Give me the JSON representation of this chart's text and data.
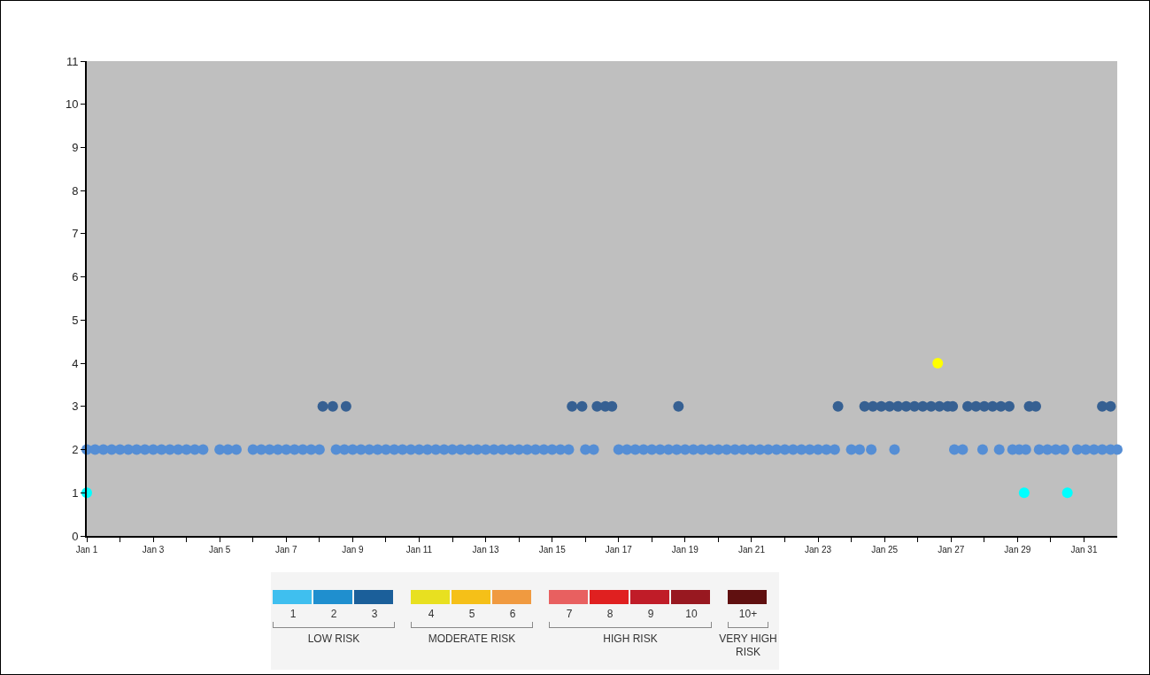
{
  "chart_data": {
    "type": "scatter",
    "marker": "circle",
    "legend": false,
    "grid": false,
    "xlim": [
      "--01-01",
      "--02-01"
    ],
    "ylim": [
      0,
      11
    ],
    "yticks": [
      0,
      1,
      2,
      3,
      4,
      5,
      6,
      7,
      8,
      9,
      10,
      11
    ],
    "xticks": [
      {
        "value": "--01-01",
        "label": "Jan 1"
      },
      {
        "value": "--01-02",
        "label": null
      },
      {
        "value": "--01-03",
        "label": "Jan 3"
      },
      {
        "value": "--01-04",
        "label": null
      },
      {
        "value": "--01-05",
        "label": "Jan 5"
      },
      {
        "value": "--01-06",
        "label": null
      },
      {
        "value": "--01-07",
        "label": "Jan 7"
      },
      {
        "value": "--01-08",
        "label": null
      },
      {
        "value": "--01-09",
        "label": "Jan 9"
      },
      {
        "value": "--01-10",
        "label": null
      },
      {
        "value": "--01-11",
        "label": "Jan 11"
      },
      {
        "value": "--01-12",
        "label": null
      },
      {
        "value": "--01-13",
        "label": "Jan 13"
      },
      {
        "value": "--01-14",
        "label": null
      },
      {
        "value": "--01-15",
        "label": "Jan 15"
      },
      {
        "value": "--01-16",
        "label": null
      },
      {
        "value": "--01-17",
        "label": "Jan 17"
      },
      {
        "value": "--01-18",
        "label": null
      },
      {
        "value": "--01-19",
        "label": "Jan 19"
      },
      {
        "value": "--01-20",
        "label": null
      },
      {
        "value": "--01-21",
        "label": "Jan 21"
      },
      {
        "value": "--01-22",
        "label": null
      },
      {
        "value": "--01-23",
        "label": "Jan 23"
      },
      {
        "value": "--01-24",
        "label": null
      },
      {
        "value": "--01-25",
        "label": "Jan 25"
      },
      {
        "value": "--01-26",
        "label": null
      },
      {
        "value": "--01-27",
        "label": "Jan 27"
      },
      {
        "value": "--01-28",
        "label": null
      },
      {
        "value": "--01-29",
        "label": "Jan 29"
      },
      {
        "value": "--01-30",
        "label": null
      },
      {
        "value": "--01-31",
        "label": "Jan 31"
      }
    ],
    "series": [
      {
        "color": "#00ffff",
        "x": [
          "--01-01T00:00",
          "--01-29T04:48",
          "--01-30T12:00"
        ],
        "values": [
          1,
          1,
          1
        ]
      },
      {
        "color": "#558ed5",
        "x": [
          "--01-01T00:00",
          "--01-01T06:00",
          "--01-01T12:00",
          "--01-01T18:00",
          "--01-02T00:00",
          "--01-02T06:00",
          "--01-02T12:00",
          "--01-02T18:00",
          "--01-03T00:00",
          "--01-03T06:00",
          "--01-03T12:00",
          "--01-03T18:00",
          "--01-04T00:00",
          "--01-04T06:00",
          "--01-04T12:00",
          "--01-05T00:00",
          "--01-05T06:00",
          "--01-05T12:00",
          "--01-06T00:00",
          "--01-06T06:00",
          "--01-06T12:00",
          "--01-06T18:00",
          "--01-07T00:00",
          "--01-07T06:00",
          "--01-07T12:00",
          "--01-07T18:00",
          "--01-08T00:00",
          "--01-08T12:00",
          "--01-08T18:00",
          "--01-09T00:00",
          "--01-09T06:00",
          "--01-09T12:00",
          "--01-09T18:00",
          "--01-10T00:00",
          "--01-10T06:00",
          "--01-10T12:00",
          "--01-10T18:00",
          "--01-11T00:00",
          "--01-11T06:00",
          "--01-11T12:00",
          "--01-11T18:00",
          "--01-12T00:00",
          "--01-12T06:00",
          "--01-12T12:00",
          "--01-12T18:00",
          "--01-13T00:00",
          "--01-13T06:00",
          "--01-13T12:00",
          "--01-13T18:00",
          "--01-14T00:00",
          "--01-14T06:00",
          "--01-14T12:00",
          "--01-14T18:00",
          "--01-15T00:00",
          "--01-15T06:00",
          "--01-15T12:00",
          "--01-16T00:00",
          "--01-16T06:00",
          "--01-17T00:00",
          "--01-17T06:00",
          "--01-17T12:00",
          "--01-17T18:00",
          "--01-18T00:00",
          "--01-18T06:00",
          "--01-18T12:00",
          "--01-18T18:00",
          "--01-19T00:00",
          "--01-19T06:00",
          "--01-19T12:00",
          "--01-19T18:00",
          "--01-20T00:00",
          "--01-20T06:00",
          "--01-20T12:00",
          "--01-20T18:00",
          "--01-21T00:00",
          "--01-21T06:00",
          "--01-21T12:00",
          "--01-21T18:00",
          "--01-22T00:00",
          "--01-22T06:00",
          "--01-22T12:00",
          "--01-22T18:00",
          "--01-23T00:00",
          "--01-23T06:00",
          "--01-23T12:00",
          "--01-24T00:00",
          "--01-24T06:00",
          "--01-24T14:24",
          "--01-25T07:12",
          "--01-27T02:24",
          "--01-27T08:24",
          "--01-27T22:48",
          "--01-28T10:48",
          "--01-28T20:24",
          "--01-29T01:12",
          "--01-29T06:00",
          "--01-29T15:36",
          "--01-29T21:36",
          "--01-30T03:36",
          "--01-30T09:36",
          "--01-30T19:12",
          "--01-31T01:12",
          "--01-31T07:12",
          "--01-31T13:12",
          "--01-31T19:12",
          "--02-01T00:00"
        ],
        "values": [
          2,
          2,
          2,
          2,
          2,
          2,
          2,
          2,
          2,
          2,
          2,
          2,
          2,
          2,
          2,
          2,
          2,
          2,
          2,
          2,
          2,
          2,
          2,
          2,
          2,
          2,
          2,
          2,
          2,
          2,
          2,
          2,
          2,
          2,
          2,
          2,
          2,
          2,
          2,
          2,
          2,
          2,
          2,
          2,
          2,
          2,
          2,
          2,
          2,
          2,
          2,
          2,
          2,
          2,
          2,
          2,
          2,
          2,
          2,
          2,
          2,
          2,
          2,
          2,
          2,
          2,
          2,
          2,
          2,
          2,
          2,
          2,
          2,
          2,
          2,
          2,
          2,
          2,
          2,
          2,
          2,
          2,
          2,
          2,
          2,
          2,
          2,
          2,
          2,
          2,
          2,
          2,
          2,
          2,
          2,
          2,
          2,
          2,
          2,
          2,
          2,
          2,
          2,
          2,
          2,
          2
        ]
      },
      {
        "color": "#366092",
        "x": [
          "--01-08T02:24",
          "--01-08T09:36",
          "--01-08T19:12",
          "--01-15T14:24",
          "--01-15T21:36",
          "--01-16T08:24",
          "--01-16T14:24",
          "--01-16T19:12",
          "--01-18T19:12",
          "--01-23T14:24",
          "--01-24T09:36",
          "--01-24T15:36",
          "--01-24T21:36",
          "--01-25T03:36",
          "--01-25T09:36",
          "--01-25T15:36",
          "--01-25T21:36",
          "--01-26T03:36",
          "--01-26T09:36",
          "--01-26T15:36",
          "--01-26T21:36",
          "--01-27T01:12",
          "--01-27T12:00",
          "--01-27T18:00",
          "--01-28T00:00",
          "--01-28T06:00",
          "--01-28T12:00",
          "--01-28T18:00",
          "--01-29T08:24",
          "--01-29T13:12",
          "--01-31T13:12",
          "--01-31T19:12"
        ],
        "values": [
          3,
          3,
          3,
          3,
          3,
          3,
          3,
          3,
          3,
          3,
          3,
          3,
          3,
          3,
          3,
          3,
          3,
          3,
          3,
          3,
          3,
          3,
          3,
          3,
          3,
          3,
          3,
          3,
          3,
          3,
          3,
          3
        ]
      },
      {
        "color": "#ffff00",
        "x": [
          "--01-26T14:24"
        ],
        "values": [
          4
        ]
      }
    ],
    "annotations": [
      "1",
      "2",
      "3",
      "4",
      "5",
      "6",
      "7",
      "8",
      "9",
      "10",
      "10+",
      "LOW RISK",
      "MODERATE RISK",
      "HIGH RISK",
      "VERY HIGH RISK"
    ]
  }
}
